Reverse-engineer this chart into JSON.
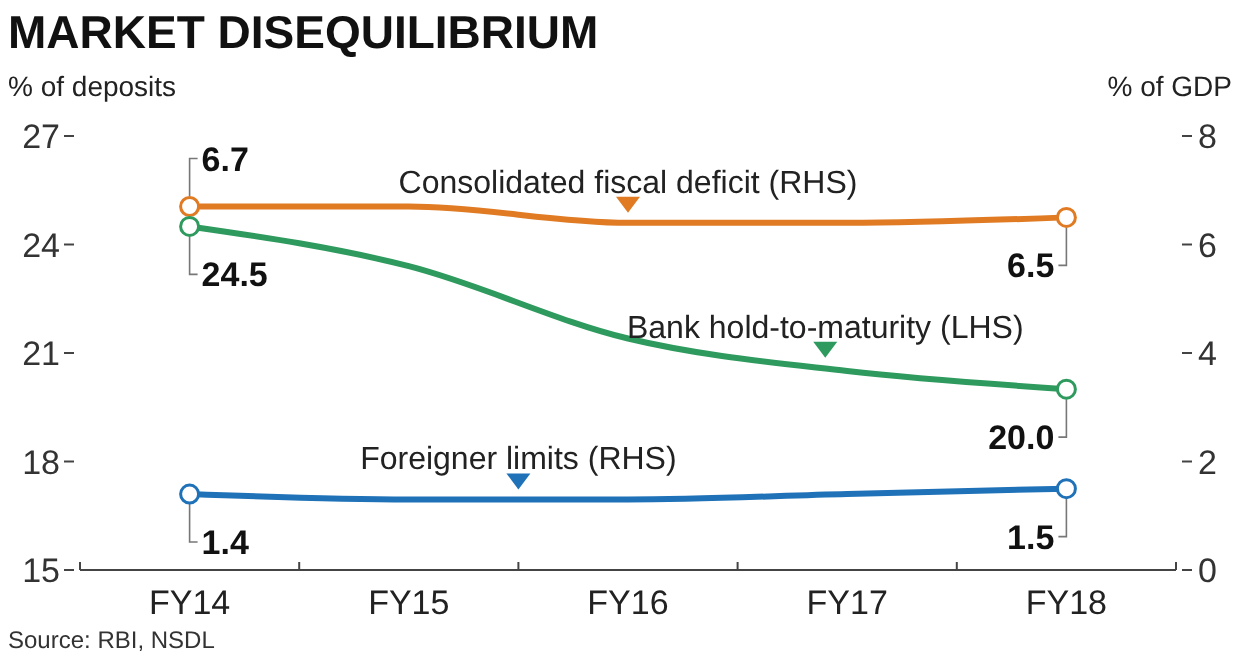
{
  "chart_data": {
    "type": "line",
    "title": "MARKET DISEQUILIBRIUM",
    "ylabel": "% of deposits",
    "y2label": "% of GDP",
    "categories": [
      "FY14",
      "FY15",
      "FY16",
      "FY17",
      "FY18"
    ],
    "series": [
      {
        "name": "Consolidated fiscal deficit (RHS)",
        "color": "#e07b24",
        "axis": "y2",
        "values": [
          6.7,
          6.7,
          6.4,
          6.4,
          6.5
        ],
        "value_labels": [
          "6.7",
          null,
          null,
          null,
          "6.5"
        ]
      },
      {
        "name": "Bank hold-to-maturity (LHS)",
        "color": "#2e9a5e",
        "values": [
          24.5,
          23.4,
          21.4,
          20.5,
          20.0
        ],
        "value_labels": [
          "24.5",
          null,
          null,
          null,
          "20.0"
        ]
      },
      {
        "name": "Foreigner limits (RHS)",
        "color": "#1f72b8",
        "axis": "y2",
        "values": [
          1.4,
          1.3,
          1.3,
          1.4,
          1.5
        ],
        "value_labels": [
          "1.4",
          null,
          null,
          null,
          "1.5"
        ]
      }
    ],
    "ylim": [
      15,
      27
    ],
    "yticks": [
      15,
      18,
      21,
      24,
      27
    ],
    "y2lim": [
      0,
      8
    ],
    "y2ticks": [
      0,
      2,
      4,
      6,
      8
    ],
    "line_style": "solid",
    "grid": false,
    "annotations": [
      "Source: RBI, NSDL"
    ]
  }
}
